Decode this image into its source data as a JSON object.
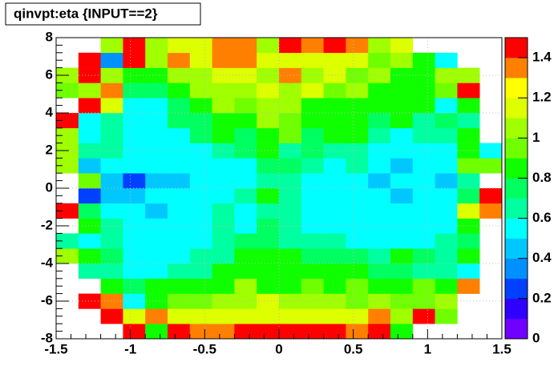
{
  "chart_data": {
    "type": "heatmap",
    "title": "qinvpt:eta {INPUT==2}",
    "xbins": [
      -1.5,
      -1.35,
      -1.2,
      -1.05,
      -0.9,
      -0.75,
      -0.6,
      -0.45,
      -0.3,
      -0.15,
      0,
      0.15,
      0.3,
      0.45,
      0.6,
      0.75,
      0.9,
      1.05,
      1.2,
      1.35,
      1.5
    ],
    "ybins": [
      -8,
      -7.2,
      -6.4,
      -5.6,
      -4.8,
      -4,
      -3.2,
      -2.4,
      -1.6,
      -0.8,
      0,
      0.8,
      1.6,
      2.4,
      3.2,
      4,
      4.8,
      5.6,
      6.4,
      7.2,
      8
    ],
    "z": [
      [
        null,
        null,
        null,
        1.5,
        0.85,
        1.5,
        1.35,
        1.35,
        1.5,
        1.5,
        1.5,
        1.5,
        1.5,
        1.35,
        1.5,
        0.85,
        null,
        null,
        null,
        null
      ],
      [
        null,
        null,
        1.5,
        1.15,
        1.3,
        1.2,
        1.15,
        1.1,
        1.15,
        1.15,
        1.2,
        1.15,
        1.15,
        1.15,
        1.3,
        1.05,
        1.5,
        0.9,
        null,
        null
      ],
      [
        null,
        1.5,
        1.3,
        0.6,
        0.8,
        0.9,
        0.9,
        1.0,
        1.05,
        1.15,
        1.05,
        1.05,
        1.0,
        0.95,
        1.0,
        0.9,
        0.9,
        1.05,
        null,
        null
      ],
      [
        null,
        null,
        0.8,
        0.75,
        0.8,
        0.8,
        0.85,
        0.8,
        1.0,
        0.85,
        0.85,
        0.9,
        0.85,
        0.9,
        0.8,
        0.8,
        0.9,
        0.8,
        1.3,
        null
      ],
      [
        null,
        0.65,
        0.65,
        0.6,
        0.6,
        0.65,
        0.65,
        0.8,
        0.8,
        0.8,
        0.8,
        0.8,
        0.8,
        0.85,
        0.75,
        0.75,
        0.65,
        0.65,
        0.5,
        null
      ],
      [
        1.0,
        0.8,
        0.75,
        0.6,
        0.6,
        0.6,
        0.65,
        0.7,
        0.8,
        0.8,
        0.8,
        0.75,
        0.75,
        0.75,
        0.7,
        0.8,
        0.75,
        0.7,
        0.8,
        null
      ],
      [
        0.65,
        0.6,
        0.7,
        0.5,
        0.5,
        0.6,
        0.6,
        0.7,
        0.75,
        0.75,
        0.7,
        0.7,
        0.65,
        0.6,
        0.6,
        0.6,
        0.55,
        0.7,
        0.75,
        null
      ],
      [
        null,
        0.8,
        0.65,
        0.5,
        0.5,
        0.6,
        0.6,
        0.65,
        0.6,
        0.75,
        0.65,
        0.6,
        0.55,
        0.55,
        0.6,
        0.6,
        0.6,
        0.6,
        0.8,
        null
      ],
      [
        1.5,
        0.75,
        0.55,
        0.5,
        0.45,
        0.55,
        0.6,
        0.65,
        0.6,
        0.7,
        0.65,
        0.5,
        0.55,
        0.55,
        0.55,
        0.5,
        0.5,
        0.55,
        1.1,
        1.3
      ],
      [
        null,
        0.3,
        0.4,
        0.45,
        0.5,
        0.5,
        0.6,
        0.6,
        0.7,
        0.8,
        0.65,
        0.55,
        0.6,
        0.55,
        0.5,
        0.4,
        0.5,
        0.5,
        0.75,
        1.5
      ],
      [
        null,
        0.9,
        0.45,
        0.3,
        0.4,
        0.4,
        0.5,
        0.6,
        0.6,
        0.7,
        0.7,
        0.6,
        0.55,
        0.6,
        0.45,
        0.5,
        0.55,
        0.45,
        0.65,
        null
      ],
      [
        1.0,
        0.45,
        0.6,
        0.5,
        0.5,
        0.5,
        0.5,
        0.6,
        0.6,
        0.75,
        0.75,
        0.65,
        0.6,
        0.65,
        0.55,
        0.45,
        0.5,
        0.6,
        0.95,
        0.9
      ],
      [
        1.0,
        0.65,
        0.65,
        0.6,
        0.5,
        0.55,
        0.6,
        0.7,
        0.75,
        0.8,
        0.65,
        0.75,
        0.7,
        0.65,
        0.6,
        0.55,
        0.6,
        0.6,
        0.85,
        0.5
      ],
      [
        1.0,
        0.6,
        0.65,
        0.6,
        0.55,
        0.6,
        0.75,
        0.8,
        0.75,
        0.8,
        0.9,
        0.75,
        0.8,
        0.8,
        0.65,
        0.55,
        0.65,
        0.65,
        0.8,
        null
      ],
      [
        1.5,
        0.5,
        0.65,
        0.6,
        0.6,
        0.75,
        0.75,
        0.85,
        0.85,
        1.05,
        0.9,
        0.8,
        0.85,
        0.8,
        0.75,
        0.8,
        0.65,
        0.75,
        0.65,
        null
      ],
      [
        null,
        1.5,
        1.15,
        0.6,
        0.6,
        0.75,
        0.8,
        1.0,
        0.9,
        1.0,
        1.0,
        0.8,
        0.8,
        0.85,
        0.8,
        0.85,
        0.8,
        0.5,
        0.85,
        null
      ],
      [
        0.9,
        1.0,
        1.3,
        0.75,
        0.75,
        0.85,
        1.0,
        1.05,
        1.0,
        1.1,
        1.05,
        1.1,
        0.9,
        1.0,
        0.85,
        0.85,
        0.8,
        0.9,
        1.5,
        null
      ],
      [
        1.05,
        1.5,
        1.05,
        0.8,
        0.85,
        1.0,
        1.0,
        1.15,
        1.15,
        1.05,
        1.3,
        1.05,
        1.1,
        0.9,
        1.05,
        0.85,
        0.85,
        1.0,
        1.0,
        null
      ],
      [
        null,
        1.5,
        0.35,
        1.5,
        1.0,
        1.4,
        1.15,
        1.3,
        1.3,
        1.2,
        1.2,
        1.15,
        1.15,
        1.1,
        0.9,
        1.05,
        0.85,
        0.5,
        null,
        null
      ],
      [
        null,
        null,
        1.05,
        1.5,
        1.05,
        1.2,
        1.2,
        1.4,
        1.35,
        1.0,
        1.45,
        1.35,
        1.45,
        1.4,
        1.05,
        1.15,
        null,
        null,
        null,
        null
      ]
    ],
    "xlim": [
      -1.5,
      1.5
    ],
    "xticks": [
      -1.5,
      -1,
      -0.5,
      0,
      0.5,
      1,
      1.5
    ],
    "ylim": [
      -8,
      8
    ],
    "yticks": [
      -8,
      -6,
      -4,
      -2,
      0,
      2,
      4,
      6,
      8
    ],
    "zlim": [
      0,
      1.5
    ],
    "zticks": [
      0,
      0.2,
      0.4,
      0.6,
      0.8,
      1,
      1.2,
      1.4
    ],
    "palette": [
      "#7000ff",
      "#3000ff",
      "#0040ff",
      "#0090ff",
      "#00c8ff",
      "#00ffff",
      "#00ffa0",
      "#00ff60",
      "#10ff00",
      "#70ff00",
      "#a0ff00",
      "#ddff00",
      "#ffff00",
      "#ff8000",
      "#ff0000"
    ],
    "grid": true
  }
}
